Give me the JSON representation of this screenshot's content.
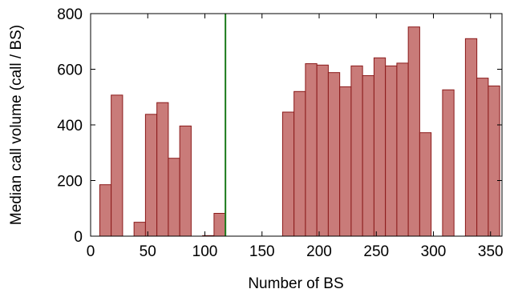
{
  "chart_data": {
    "type": "bar",
    "xlabel": "Number of BS",
    "ylabel": "Median call volume (call / BS)",
    "xlim": [
      0,
      360
    ],
    "ylim": [
      0,
      800
    ],
    "xticks": [
      0,
      50,
      100,
      150,
      200,
      250,
      300,
      350
    ],
    "yticks": [
      0,
      200,
      400,
      600,
      800
    ],
    "bin_width": 10,
    "grid": false,
    "legend": "none",
    "bars": [
      {
        "x": 13,
        "value": 185
      },
      {
        "x": 23,
        "value": 507
      },
      {
        "x": 43,
        "value": 50
      },
      {
        "x": 53,
        "value": 438
      },
      {
        "x": 63,
        "value": 480
      },
      {
        "x": 73,
        "value": 280
      },
      {
        "x": 83,
        "value": 396
      },
      {
        "x": 103,
        "value": 2
      },
      {
        "x": 113,
        "value": 82
      },
      {
        "x": 173,
        "value": 446
      },
      {
        "x": 183,
        "value": 520
      },
      {
        "x": 193,
        "value": 620
      },
      {
        "x": 203,
        "value": 615
      },
      {
        "x": 213,
        "value": 588
      },
      {
        "x": 223,
        "value": 537
      },
      {
        "x": 233,
        "value": 612
      },
      {
        "x": 243,
        "value": 577
      },
      {
        "x": 253,
        "value": 641
      },
      {
        "x": 263,
        "value": 612
      },
      {
        "x": 273,
        "value": 622
      },
      {
        "x": 283,
        "value": 752
      },
      {
        "x": 293,
        "value": 372
      },
      {
        "x": 313,
        "value": 526
      },
      {
        "x": 333,
        "value": 710
      },
      {
        "x": 343,
        "value": 568
      },
      {
        "x": 353,
        "value": 540
      }
    ],
    "vertical_line": {
      "x": 118,
      "color": "#1a7a1a"
    },
    "colors": {
      "bar_fill": "#c97b79",
      "bar_edge": "#8b1a1a"
    }
  }
}
